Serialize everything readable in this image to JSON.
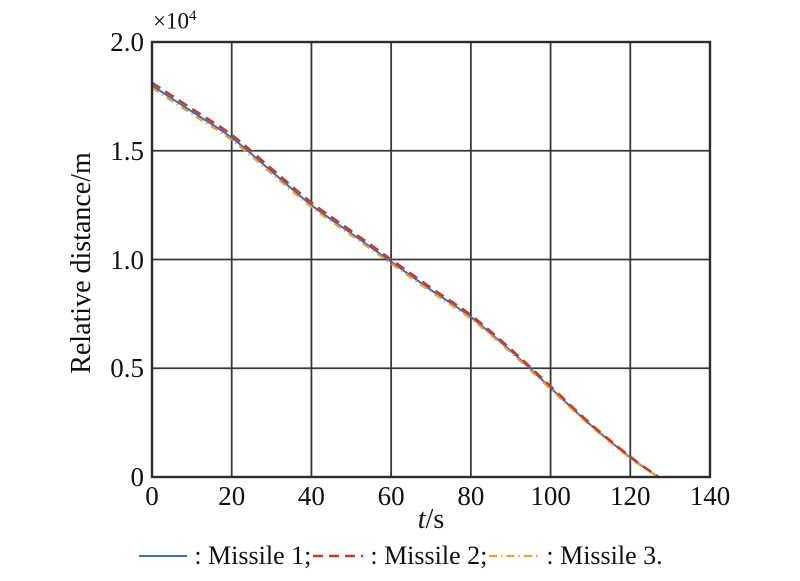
{
  "figure": {
    "background": "#ffffff",
    "text_color": "#111111",
    "grid_color": "#383838",
    "border_color": "#2d2d2d",
    "y_exponent_base": "×10",
    "y_exponent_power": "4"
  },
  "chart_data": {
    "type": "line",
    "title": "",
    "xlabel_italic": "t",
    "xlabel_rest": "/s",
    "ylabel": "Relative distance/m",
    "y_unit_scale": "×10^4 m",
    "xlim": [
      0,
      140
    ],
    "ylim": [
      0,
      2.0
    ],
    "grid": true,
    "legend_position": "below",
    "xticks": [
      0,
      20,
      40,
      60,
      80,
      100,
      120,
      140
    ],
    "xtick_labels": [
      "0",
      "20",
      "40",
      "60",
      "80",
      "100",
      "120",
      "140"
    ],
    "yticks": [
      0,
      0.5,
      1.0,
      1.5,
      2.0
    ],
    "ytick_labels": [
      "0",
      "0.5",
      "1.0",
      "1.5",
      "2.0"
    ],
    "x": [
      0,
      10,
      20,
      30,
      40,
      50,
      60,
      70,
      80,
      90,
      100,
      110,
      120,
      127
    ],
    "series": [
      {
        "name": "Missile 1",
        "color": "#3e6cb5",
        "style": "solid",
        "stroke_width": 2.0,
        "values": [
          1.8,
          1.68,
          1.56,
          1.405,
          1.25,
          1.12,
          0.99,
          0.86,
          0.735,
          0.58,
          0.41,
          0.24,
          0.09,
          0.0
        ]
      },
      {
        "name": "Missile 2",
        "color": "#c43e2e",
        "style": "dashed",
        "stroke_width": 2.6,
        "values": [
          1.813,
          1.693,
          1.573,
          1.417,
          1.262,
          1.131,
          1.0,
          0.87,
          0.744,
          0.588,
          0.417,
          0.245,
          0.093,
          0.001
        ]
      },
      {
        "name": "Missile 3",
        "color": "#e8a33d",
        "style": "dashdot",
        "stroke_width": 2.2,
        "values": [
          1.789,
          1.669,
          1.549,
          1.395,
          1.241,
          1.111,
          0.981,
          0.852,
          0.727,
          0.573,
          0.404,
          0.235,
          0.086,
          0.0
        ]
      }
    ]
  },
  "legend": {
    "items": [
      {
        "label": ": Missile 1;",
        "series_index": 0
      },
      {
        "label": ": Missile 2;",
        "series_index": 1
      },
      {
        "label": ": Missile 3.",
        "series_index": 2
      }
    ]
  }
}
